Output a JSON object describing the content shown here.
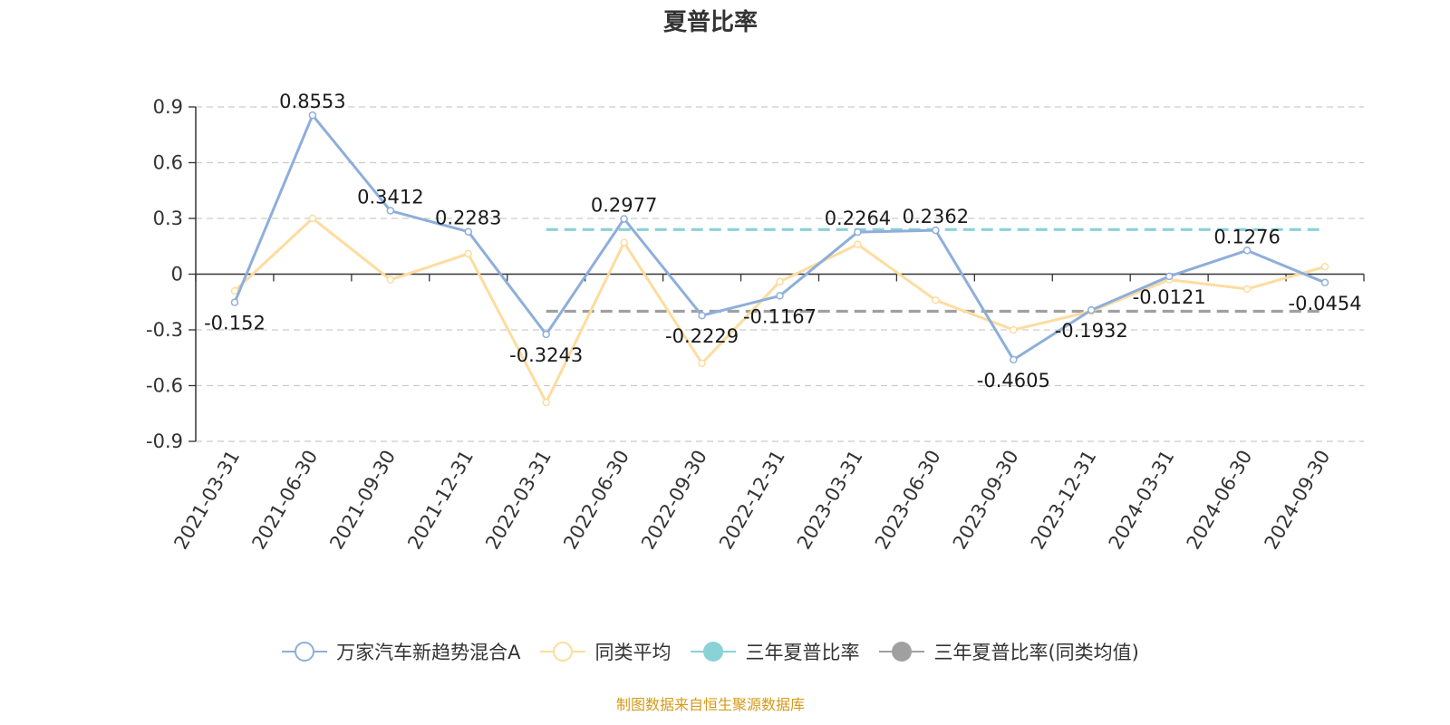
{
  "chart_data": {
    "type": "line",
    "title": "夏普比率",
    "categories": [
      "2021-03-31",
      "2021-06-30",
      "2021-09-30",
      "2021-12-31",
      "2022-03-31",
      "2022-06-30",
      "2022-09-30",
      "2022-12-31",
      "2023-03-31",
      "2023-06-30",
      "2023-09-30",
      "2023-12-31",
      "2024-03-31",
      "2024-06-30",
      "2024-09-30"
    ],
    "ylim": [
      -0.9,
      0.9
    ],
    "yticks": [
      "-0.9",
      "-0.6",
      "-0.3",
      "0",
      "0.3",
      "0.6",
      "0.9"
    ],
    "grid": true,
    "legend_position": "bottom",
    "series": [
      {
        "name": "万家汽车新趋势混合A",
        "color": "#8eaedb",
        "values": [
          -0.152,
          0.8553,
          0.3412,
          0.2283,
          -0.3243,
          0.2977,
          -0.2229,
          -0.1167,
          0.2264,
          0.2362,
          -0.4605,
          -0.1932,
          -0.0121,
          0.1276,
          -0.0454
        ],
        "labels": [
          "-0.152",
          "0.8553",
          "0.3412",
          "0.2283",
          "-0.3243",
          "0.2977",
          "-0.2229",
          "-0.1167",
          "0.2264",
          "0.2362",
          "-0.4605",
          "-0.1932",
          "-0.0121",
          "0.1276",
          "-0.0454"
        ]
      },
      {
        "name": "同类平均",
        "color": "#fddc9e",
        "values": [
          -0.09,
          0.3,
          -0.03,
          0.11,
          -0.69,
          0.17,
          -0.48,
          -0.04,
          0.16,
          -0.14,
          -0.3,
          -0.2,
          -0.03,
          -0.08,
          0.04
        ]
      }
    ],
    "reference_lines": [
      {
        "name": "三年夏普比率",
        "color": "#8ad2d6",
        "value": 0.24,
        "from": "2022-03-31",
        "to": "2024-09-30"
      },
      {
        "name": "三年夏普比率(同类均值)",
        "color": "#a0a0a0",
        "value": -0.2,
        "from": "2022-03-31",
        "to": "2024-09-30"
      }
    ]
  },
  "legend": [
    {
      "label": "万家汽车新趋势混合A",
      "color": "#8eaedb",
      "icon": "hollow-circle-line"
    },
    {
      "label": "同类平均",
      "color": "#fddc9e",
      "icon": "hollow-circle-line"
    },
    {
      "label": "三年夏普比率",
      "color": "#8ad2d6",
      "icon": "filled-circle-line"
    },
    {
      "label": "三年夏普比率(同类均值)",
      "color": "#a0a0a0",
      "icon": "filled-circle-line"
    }
  ],
  "footer": "制图数据来自恒生聚源数据库"
}
